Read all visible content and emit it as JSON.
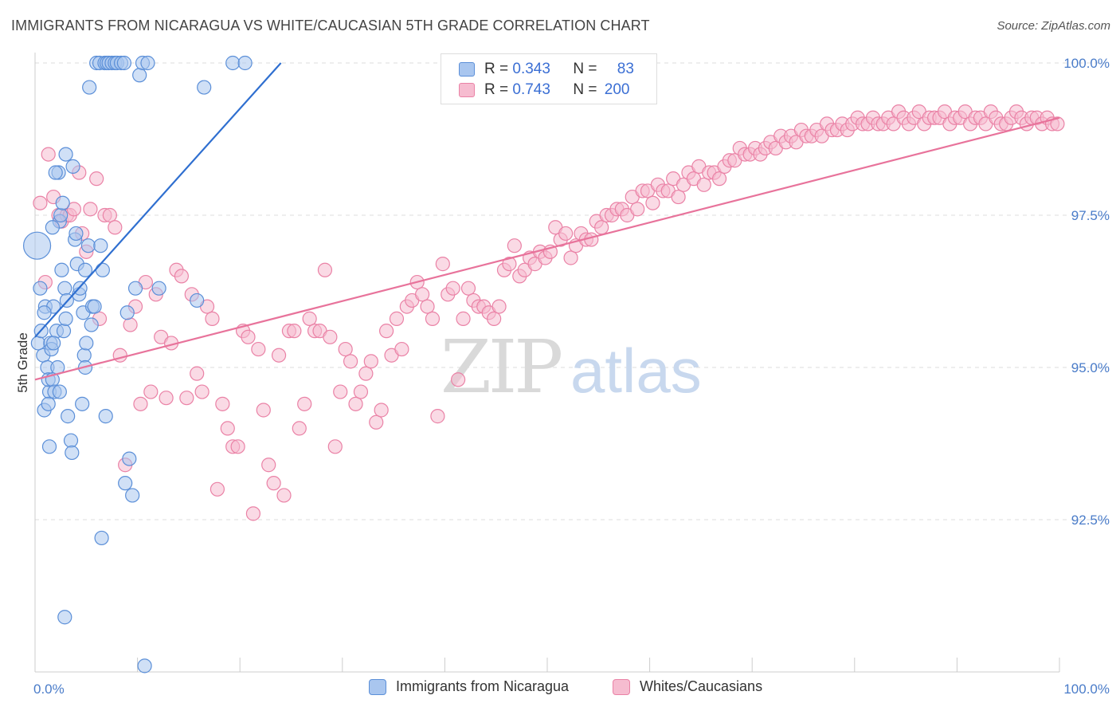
{
  "title": "IMMIGRANTS FROM NICARAGUA VS WHITE/CAUCASIAN 5TH GRADE CORRELATION CHART",
  "source": "Source: ZipAtlas.com",
  "legend": {
    "r_label": "R =",
    "n_label": "N =",
    "rows": [
      {
        "r": "0.343",
        "n": "83"
      },
      {
        "r": "0.743",
        "n": "200"
      }
    ]
  },
  "bottom_legend": [
    "Immigrants from Nicaragua",
    "Whites/Caucasians"
  ],
  "watermark": {
    "a": "ZIP",
    "b": "atlas"
  },
  "colors": {
    "blue_fill": "#a9c6ef",
    "blue_stroke": "#5b8fd8",
    "blue_line": "#2f6fd0",
    "pink_fill": "#f6bcd0",
    "pink_stroke": "#ea82a6",
    "pink_line": "#e8739b",
    "tick_label": "#4a7cc9",
    "grid": "#dddddd"
  },
  "chart_data": {
    "type": "scatter",
    "xlabel": "",
    "ylabel": "5th Grade",
    "xlim": [
      0,
      100
    ],
    "ylim": [
      90.0,
      100.0
    ],
    "x_tick_labels": [
      "0.0%",
      "100.0%"
    ],
    "y_ticks": [
      92.5,
      95.0,
      97.5,
      100.0
    ],
    "y_tick_labels": [
      "92.5%",
      "95.0%",
      "97.5%",
      "100.0%"
    ],
    "grid": true,
    "series": [
      {
        "name": "Immigrants from Nicaragua",
        "color": "#5b8fd8",
        "trend": [
          [
            0.0,
            95.5
          ],
          [
            24.0,
            100.0
          ]
        ],
        "points": [
          [
            0.2,
            97.0
          ],
          [
            0.5,
            96.3
          ],
          [
            0.8,
            95.2
          ],
          [
            0.3,
            95.4
          ],
          [
            0.6,
            95.6
          ],
          [
            0.9,
            94.3
          ],
          [
            1.0,
            96.0
          ],
          [
            1.2,
            95.0
          ],
          [
            1.4,
            94.6
          ],
          [
            1.3,
            94.8
          ],
          [
            1.3,
            94.4
          ],
          [
            1.4,
            93.7
          ],
          [
            1.5,
            95.4
          ],
          [
            1.6,
            95.3
          ],
          [
            1.7,
            94.8
          ],
          [
            1.8,
            96.0
          ],
          [
            1.9,
            94.6
          ],
          [
            2.1,
            95.6
          ],
          [
            2.2,
            95.0
          ],
          [
            2.3,
            98.2
          ],
          [
            2.4,
            97.4
          ],
          [
            2.5,
            97.5
          ],
          [
            2.7,
            97.7
          ],
          [
            2.8,
            95.6
          ],
          [
            2.9,
            96.3
          ],
          [
            3.0,
            95.8
          ],
          [
            3.1,
            96.1
          ],
          [
            3.2,
            94.2
          ],
          [
            3.5,
            93.8
          ],
          [
            3.6,
            93.6
          ],
          [
            3.7,
            98.3
          ],
          [
            3.9,
            97.1
          ],
          [
            4.0,
            97.2
          ],
          [
            4.1,
            96.7
          ],
          [
            4.3,
            96.2
          ],
          [
            4.4,
            96.3
          ],
          [
            4.6,
            94.4
          ],
          [
            4.7,
            95.9
          ],
          [
            4.8,
            95.2
          ],
          [
            4.9,
            95.0
          ],
          [
            5.0,
            95.4
          ],
          [
            5.2,
            97.0
          ],
          [
            5.3,
            99.6
          ],
          [
            5.5,
            95.7
          ],
          [
            5.6,
            96.0
          ],
          [
            5.8,
            96.0
          ],
          [
            6.0,
            100.0
          ],
          [
            6.3,
            100.0
          ],
          [
            6.4,
            97.0
          ],
          [
            6.6,
            96.6
          ],
          [
            6.8,
            100.0
          ],
          [
            6.9,
            94.2
          ],
          [
            7.0,
            100.0
          ],
          [
            7.2,
            100.0
          ],
          [
            7.5,
            100.0
          ],
          [
            7.8,
            100.0
          ],
          [
            8.0,
            100.0
          ],
          [
            8.4,
            100.0
          ],
          [
            8.7,
            100.0
          ],
          [
            9.0,
            95.9
          ],
          [
            9.2,
            93.5
          ],
          [
            9.5,
            92.9
          ],
          [
            9.8,
            96.3
          ],
          [
            10.2,
            99.8
          ],
          [
            10.5,
            100.0
          ],
          [
            11.0,
            100.0
          ],
          [
            12.1,
            96.3
          ],
          [
            15.8,
            96.1
          ],
          [
            16.5,
            99.6
          ],
          [
            19.3,
            100.0
          ],
          [
            20.5,
            100.0
          ],
          [
            3.0,
            98.5
          ],
          [
            2.0,
            98.2
          ],
          [
            1.7,
            97.3
          ],
          [
            2.6,
            96.6
          ],
          [
            4.9,
            96.6
          ],
          [
            8.8,
            93.1
          ],
          [
            6.5,
            92.2
          ],
          [
            2.9,
            90.9
          ],
          [
            10.7,
            90.1
          ],
          [
            1.8,
            95.4
          ],
          [
            2.4,
            94.6
          ],
          [
            0.9,
            95.9
          ]
        ]
      },
      {
        "name": "Whites/Caucasians",
        "color": "#ea82a6",
        "trend": [
          [
            0.0,
            94.8
          ],
          [
            100.0,
            99.1
          ]
        ],
        "points": [
          [
            0.5,
            97.7
          ],
          [
            1.0,
            96.4
          ],
          [
            1.3,
            98.5
          ],
          [
            1.8,
            97.8
          ],
          [
            2.3,
            97.5
          ],
          [
            2.6,
            97.4
          ],
          [
            3.1,
            97.5
          ],
          [
            3.4,
            97.5
          ],
          [
            3.8,
            97.6
          ],
          [
            4.3,
            98.2
          ],
          [
            4.6,
            97.2
          ],
          [
            5.0,
            96.9
          ],
          [
            5.4,
            97.6
          ],
          [
            6.0,
            98.1
          ],
          [
            6.3,
            95.8
          ],
          [
            6.8,
            97.5
          ],
          [
            7.3,
            97.5
          ],
          [
            7.8,
            97.3
          ],
          [
            8.3,
            95.2
          ],
          [
            8.8,
            93.4
          ],
          [
            9.3,
            95.7
          ],
          [
            9.8,
            96.0
          ],
          [
            10.3,
            94.4
          ],
          [
            10.8,
            96.4
          ],
          [
            11.3,
            94.6
          ],
          [
            11.8,
            96.2
          ],
          [
            12.3,
            95.5
          ],
          [
            12.8,
            94.5
          ],
          [
            13.3,
            95.4
          ],
          [
            13.8,
            96.6
          ],
          [
            14.3,
            96.5
          ],
          [
            14.8,
            94.5
          ],
          [
            15.3,
            96.2
          ],
          [
            15.8,
            94.9
          ],
          [
            16.3,
            94.6
          ],
          [
            16.8,
            96.0
          ],
          [
            17.3,
            95.8
          ],
          [
            17.8,
            93.0
          ],
          [
            18.3,
            94.4
          ],
          [
            18.8,
            94.0
          ],
          [
            19.3,
            93.7
          ],
          [
            19.8,
            93.7
          ],
          [
            20.3,
            95.6
          ],
          [
            20.8,
            95.5
          ],
          [
            21.3,
            92.6
          ],
          [
            21.8,
            95.3
          ],
          [
            22.3,
            94.3
          ],
          [
            22.8,
            93.4
          ],
          [
            23.3,
            93.1
          ],
          [
            23.8,
            95.2
          ],
          [
            24.3,
            92.9
          ],
          [
            24.8,
            95.6
          ],
          [
            25.3,
            95.6
          ],
          [
            25.8,
            94.0
          ],
          [
            26.3,
            94.4
          ],
          [
            26.8,
            95.8
          ],
          [
            27.3,
            95.6
          ],
          [
            27.8,
            95.6
          ],
          [
            28.3,
            96.6
          ],
          [
            28.8,
            95.5
          ],
          [
            29.3,
            93.7
          ],
          [
            29.8,
            94.6
          ],
          [
            30.3,
            95.3
          ],
          [
            30.8,
            95.1
          ],
          [
            31.3,
            94.4
          ],
          [
            31.8,
            94.6
          ],
          [
            32.3,
            94.9
          ],
          [
            32.8,
            95.1
          ],
          [
            33.3,
            94.1
          ],
          [
            33.8,
            94.3
          ],
          [
            34.3,
            95.6
          ],
          [
            34.8,
            95.2
          ],
          [
            35.3,
            95.8
          ],
          [
            35.8,
            95.3
          ],
          [
            36.3,
            96.0
          ],
          [
            36.8,
            96.1
          ],
          [
            37.3,
            96.4
          ],
          [
            37.8,
            96.2
          ],
          [
            38.3,
            96.0
          ],
          [
            38.8,
            95.8
          ],
          [
            39.3,
            94.2
          ],
          [
            39.8,
            96.7
          ],
          [
            40.3,
            96.2
          ],
          [
            40.8,
            96.3
          ],
          [
            41.3,
            94.8
          ],
          [
            41.8,
            95.8
          ],
          [
            42.3,
            96.3
          ],
          [
            42.8,
            96.1
          ],
          [
            43.3,
            96.0
          ],
          [
            43.8,
            96.0
          ],
          [
            44.3,
            95.9
          ],
          [
            44.8,
            95.8
          ],
          [
            45.3,
            96.0
          ],
          [
            45.8,
            96.6
          ],
          [
            46.3,
            96.7
          ],
          [
            46.8,
            97.0
          ],
          [
            47.3,
            96.5
          ],
          [
            47.8,
            96.6
          ],
          [
            48.3,
            96.8
          ],
          [
            48.8,
            96.7
          ],
          [
            49.3,
            96.9
          ],
          [
            49.8,
            96.8
          ],
          [
            50.3,
            96.9
          ],
          [
            50.8,
            97.3
          ],
          [
            51.3,
            97.1
          ],
          [
            51.8,
            97.2
          ],
          [
            52.3,
            96.8
          ],
          [
            52.8,
            97.0
          ],
          [
            53.3,
            97.2
          ],
          [
            53.8,
            97.1
          ],
          [
            54.3,
            97.1
          ],
          [
            54.8,
            97.4
          ],
          [
            55.3,
            97.3
          ],
          [
            55.8,
            97.5
          ],
          [
            56.3,
            97.5
          ],
          [
            56.8,
            97.6
          ],
          [
            57.3,
            97.6
          ],
          [
            57.8,
            97.5
          ],
          [
            58.3,
            97.8
          ],
          [
            58.8,
            97.6
          ],
          [
            59.3,
            97.9
          ],
          [
            59.8,
            97.9
          ],
          [
            60.3,
            97.7
          ],
          [
            60.8,
            98.0
          ],
          [
            61.3,
            97.9
          ],
          [
            61.8,
            97.9
          ],
          [
            62.3,
            98.1
          ],
          [
            62.8,
            97.8
          ],
          [
            63.3,
            98.0
          ],
          [
            63.8,
            98.2
          ],
          [
            64.3,
            98.1
          ],
          [
            64.8,
            98.3
          ],
          [
            65.3,
            98.0
          ],
          [
            65.8,
            98.2
          ],
          [
            66.3,
            98.2
          ],
          [
            66.8,
            98.1
          ],
          [
            67.3,
            98.3
          ],
          [
            67.8,
            98.4
          ],
          [
            68.3,
            98.4
          ],
          [
            68.8,
            98.6
          ],
          [
            69.3,
            98.5
          ],
          [
            69.8,
            98.5
          ],
          [
            70.3,
            98.6
          ],
          [
            70.8,
            98.5
          ],
          [
            71.3,
            98.6
          ],
          [
            71.8,
            98.7
          ],
          [
            72.3,
            98.6
          ],
          [
            72.8,
            98.8
          ],
          [
            73.3,
            98.7
          ],
          [
            73.8,
            98.8
          ],
          [
            74.3,
            98.7
          ],
          [
            74.8,
            98.9
          ],
          [
            75.3,
            98.8
          ],
          [
            75.8,
            98.8
          ],
          [
            76.3,
            98.9
          ],
          [
            76.8,
            98.8
          ],
          [
            77.3,
            99.0
          ],
          [
            77.8,
            98.9
          ],
          [
            78.3,
            98.9
          ],
          [
            78.8,
            99.0
          ],
          [
            79.3,
            98.9
          ],
          [
            79.8,
            99.0
          ],
          [
            80.3,
            99.1
          ],
          [
            80.8,
            99.0
          ],
          [
            81.3,
            99.0
          ],
          [
            81.8,
            99.1
          ],
          [
            82.3,
            99.0
          ],
          [
            82.8,
            99.0
          ],
          [
            83.3,
            99.1
          ],
          [
            83.8,
            99.0
          ],
          [
            84.3,
            99.2
          ],
          [
            84.8,
            99.1
          ],
          [
            85.3,
            99.0
          ],
          [
            85.8,
            99.1
          ],
          [
            86.3,
            99.2
          ],
          [
            86.8,
            99.0
          ],
          [
            87.3,
            99.1
          ],
          [
            87.8,
            99.1
          ],
          [
            88.3,
            99.1
          ],
          [
            88.8,
            99.2
          ],
          [
            89.3,
            99.0
          ],
          [
            89.8,
            99.1
          ],
          [
            90.3,
            99.1
          ],
          [
            90.8,
            99.2
          ],
          [
            91.3,
            99.0
          ],
          [
            91.8,
            99.1
          ],
          [
            92.3,
            99.1
          ],
          [
            92.8,
            99.0
          ],
          [
            93.3,
            99.2
          ],
          [
            93.8,
            99.1
          ],
          [
            94.3,
            99.0
          ],
          [
            94.8,
            99.0
          ],
          [
            95.3,
            99.1
          ],
          [
            95.8,
            99.2
          ],
          [
            96.3,
            99.1
          ],
          [
            96.8,
            99.0
          ],
          [
            97.3,
            99.1
          ],
          [
            97.8,
            99.1
          ],
          [
            98.3,
            99.0
          ],
          [
            98.8,
            99.1
          ],
          [
            99.3,
            99.0
          ],
          [
            99.8,
            99.0
          ]
        ]
      }
    ]
  }
}
